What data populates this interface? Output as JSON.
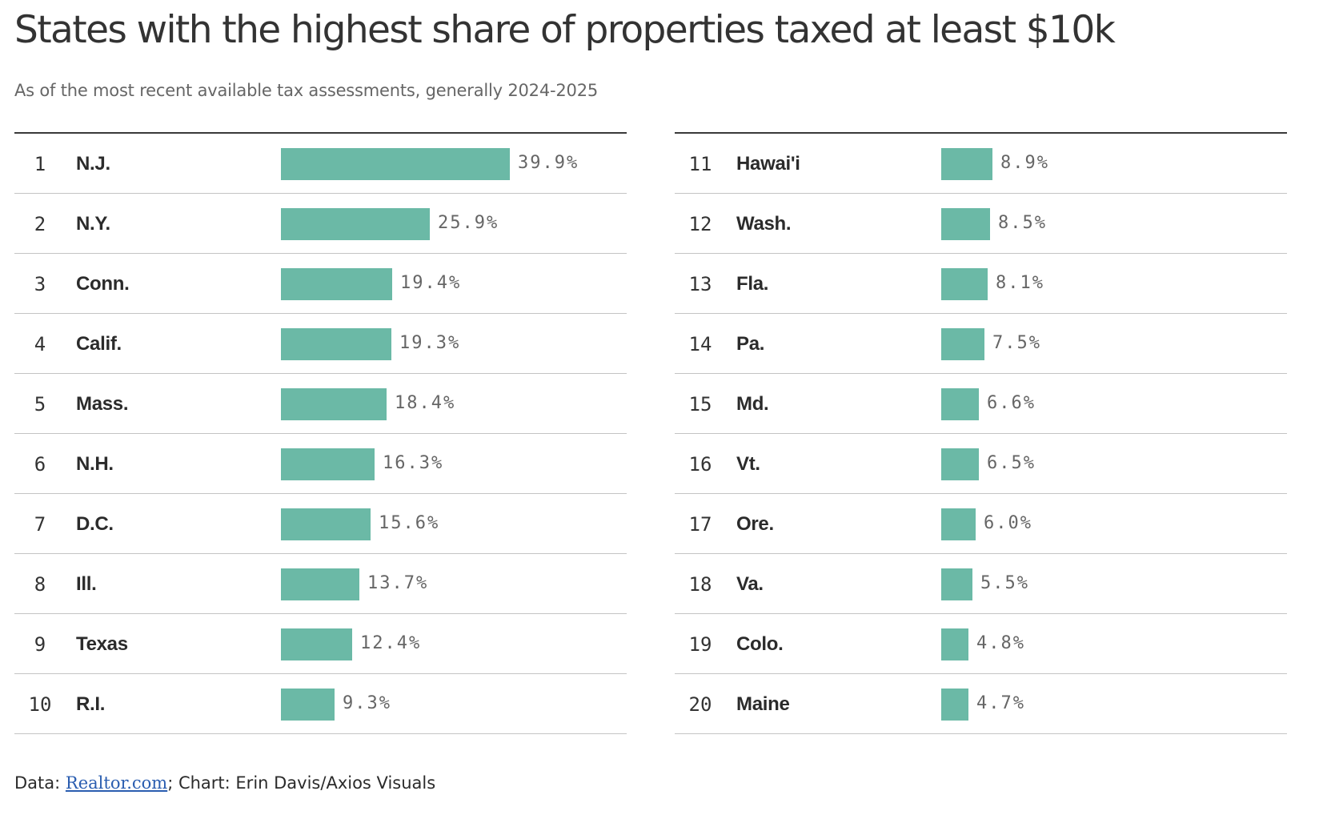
{
  "title": "States with the highest share of properties taxed at least $10k",
  "subtitle": "As of the most recent available tax assessments, generally 2024-2025",
  "footer": {
    "data_prefix": "Data: ",
    "source_link": "Realtor.com",
    "credit": "; Chart: Erin Davis/Axios Visuals"
  },
  "colors": {
    "bar": "#6bb9a6"
  },
  "chart_data": {
    "type": "bar",
    "title": "States with the highest share of properties taxed at least $10k",
    "subtitle": "As of the most recent available tax assessments, generally 2024-2025",
    "unit": "%",
    "xlim": [
      0,
      39.9
    ],
    "rows": [
      {
        "rank": "1",
        "state": "N.J.",
        "value": 39.9,
        "label": "39.9%"
      },
      {
        "rank": "2",
        "state": "N.Y.",
        "value": 25.9,
        "label": "25.9%"
      },
      {
        "rank": "3",
        "state": "Conn.",
        "value": 19.4,
        "label": "19.4%"
      },
      {
        "rank": "4",
        "state": "Calif.",
        "value": 19.3,
        "label": "19.3%"
      },
      {
        "rank": "5",
        "state": "Mass.",
        "value": 18.4,
        "label": "18.4%"
      },
      {
        "rank": "6",
        "state": "N.H.",
        "value": 16.3,
        "label": "16.3%"
      },
      {
        "rank": "7",
        "state": "D.C.",
        "value": 15.6,
        "label": "15.6%"
      },
      {
        "rank": "8",
        "state": "Ill.",
        "value": 13.7,
        "label": "13.7%"
      },
      {
        "rank": "9",
        "state": "Texas",
        "value": 12.4,
        "label": "12.4%"
      },
      {
        "rank": "10",
        "state": "R.I.",
        "value": 9.3,
        "label": "9.3%"
      },
      {
        "rank": "11",
        "state": "Hawai'i",
        "value": 8.9,
        "label": "8.9%"
      },
      {
        "rank": "12",
        "state": "Wash.",
        "value": 8.5,
        "label": "8.5%"
      },
      {
        "rank": "13",
        "state": "Fla.",
        "value": 8.1,
        "label": "8.1%"
      },
      {
        "rank": "14",
        "state": "Pa.",
        "value": 7.5,
        "label": "7.5%"
      },
      {
        "rank": "15",
        "state": "Md.",
        "value": 6.6,
        "label": "6.6%"
      },
      {
        "rank": "16",
        "state": "Vt.",
        "value": 6.5,
        "label": "6.5%"
      },
      {
        "rank": "17",
        "state": "Ore.",
        "value": 6.0,
        "label": "6.0%"
      },
      {
        "rank": "18",
        "state": "Va.",
        "value": 5.5,
        "label": "5.5%"
      },
      {
        "rank": "19",
        "state": "Colo.",
        "value": 4.8,
        "label": "4.8%"
      },
      {
        "rank": "20",
        "state": "Maine",
        "value": 4.7,
        "label": "4.7%"
      }
    ]
  }
}
